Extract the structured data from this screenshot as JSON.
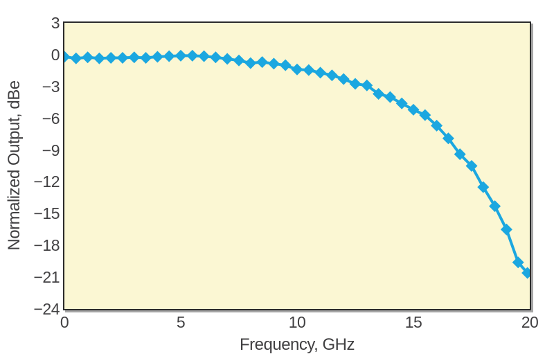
{
  "figure": {
    "background": "#ffffff",
    "plot_background": "#FBF7D3",
    "border_color": "#2b2b2b",
    "shadow_color": "#a6a6a6",
    "series_color": "#1BA7E0",
    "text_color": "#414042"
  },
  "chart_data": {
    "type": "line",
    "title": "",
    "xlabel": "Frequency, GHz",
    "ylabel": "Normalized Output, dBe",
    "xlim": [
      0,
      20
    ],
    "ylim": [
      -24,
      3
    ],
    "xticks": [
      0,
      5,
      10,
      15,
      20
    ],
    "yticks": [
      3,
      0,
      -3,
      -6,
      -9,
      -12,
      -15,
      -18,
      -21,
      -24
    ],
    "grid": false,
    "legend": null,
    "marker": "diamond",
    "series": [
      {
        "name": "Normalized Output",
        "x": [
          0,
          0.5,
          1,
          1.5,
          2,
          2.5,
          3,
          3.5,
          4,
          4.5,
          5,
          5.5,
          6,
          6.5,
          7,
          7.5,
          8,
          8.5,
          9,
          9.5,
          10,
          10.5,
          11,
          11.5,
          12,
          12.5,
          13,
          13.5,
          14,
          14.5,
          15,
          15.5,
          16,
          16.5,
          17,
          17.5,
          18,
          18.5,
          19,
          19.5,
          19.9
        ],
        "y": [
          -0.2,
          -0.35,
          -0.25,
          -0.35,
          -0.3,
          -0.3,
          -0.25,
          -0.3,
          -0.2,
          -0.15,
          -0.1,
          -0.1,
          -0.15,
          -0.25,
          -0.4,
          -0.55,
          -0.8,
          -0.7,
          -0.85,
          -1.0,
          -1.4,
          -1.45,
          -1.7,
          -1.95,
          -2.3,
          -2.75,
          -2.9,
          -3.7,
          -4.0,
          -4.6,
          -5.2,
          -5.7,
          -6.7,
          -7.9,
          -9.4,
          -10.5,
          -12.5,
          -14.3,
          -16.5,
          -19.6,
          -20.6
        ]
      }
    ]
  }
}
